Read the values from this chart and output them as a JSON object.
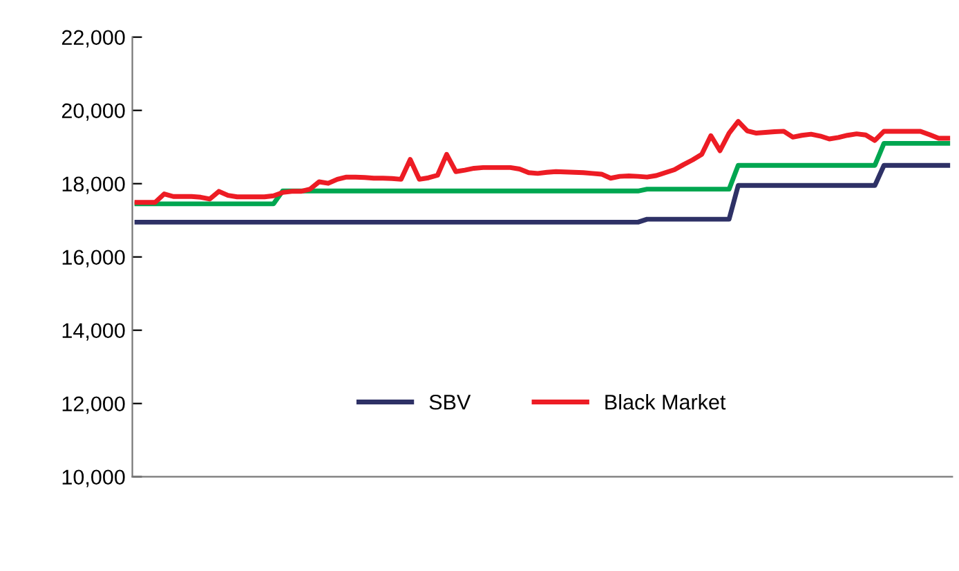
{
  "chart_data": {
    "type": "line",
    "categories": [
      null,
      null,
      null,
      null,
      null,
      null,
      null,
      null,
      null,
      null,
      null,
      null,
      null,
      null,
      null,
      null,
      null,
      null,
      null,
      null,
      null,
      null,
      null,
      null,
      null,
      null,
      null,
      null,
      null,
      null,
      null,
      null,
      null,
      null,
      null,
      null,
      null,
      null,
      null,
      null,
      null,
      null,
      null,
      null,
      null,
      null,
      null,
      null,
      null,
      null,
      null,
      null,
      null,
      null,
      null,
      null,
      null,
      null,
      null,
      null,
      null,
      null,
      null,
      null,
      null,
      null,
      null,
      null,
      null,
      null,
      null,
      null,
      null,
      null,
      null,
      null,
      null,
      null,
      null,
      null,
      null,
      null,
      null,
      null,
      null,
      null,
      null,
      null,
      null,
      null
    ],
    "series": [
      {
        "name": "SBV",
        "color": "#2e3166",
        "values": [
          16950,
          16950,
          16950,
          16950,
          16950,
          16950,
          16950,
          16950,
          16950,
          16950,
          16950,
          16950,
          16950,
          16950,
          16950,
          16950,
          16950,
          16950,
          16950,
          16950,
          16950,
          16950,
          16950,
          16950,
          16950,
          16950,
          16950,
          16950,
          16950,
          16950,
          16950,
          16950,
          16950,
          16950,
          16950,
          16950,
          16950,
          16950,
          16950,
          16950,
          16950,
          16950,
          16950,
          16950,
          16950,
          16950,
          16950,
          16950,
          16950,
          16950,
          16950,
          16950,
          16950,
          16950,
          16950,
          16950,
          17030,
          17030,
          17030,
          17030,
          17030,
          17030,
          17030,
          17030,
          17030,
          17030,
          17950,
          17950,
          17950,
          17950,
          17950,
          17950,
          17950,
          17950,
          17950,
          17950,
          17950,
          17950,
          17950,
          17950,
          17950,
          17950,
          18500,
          18500,
          18500,
          18500,
          18500,
          18500,
          18500,
          18500
        ]
      },
      {
        "color": "#00a650",
        "values": [
          17450,
          17450,
          17450,
          17450,
          17450,
          17450,
          17450,
          17450,
          17450,
          17450,
          17450,
          17450,
          17450,
          17450,
          17450,
          17450,
          17800,
          17800,
          17800,
          17800,
          17800,
          17800,
          17800,
          17800,
          17800,
          17800,
          17800,
          17800,
          17800,
          17800,
          17800,
          17800,
          17800,
          17800,
          17800,
          17800,
          17800,
          17800,
          17800,
          17800,
          17800,
          17800,
          17800,
          17800,
          17800,
          17800,
          17800,
          17800,
          17800,
          17800,
          17800,
          17800,
          17800,
          17800,
          17800,
          17800,
          17850,
          17850,
          17850,
          17850,
          17850,
          17850,
          17850,
          17850,
          17850,
          17850,
          18500,
          18500,
          18500,
          18500,
          18500,
          18500,
          18500,
          18500,
          18500,
          18500,
          18500,
          18500,
          18500,
          18500,
          18500,
          18500,
          19100,
          19100,
          19100,
          19100,
          19100,
          19100,
          19100,
          19100
        ]
      },
      {
        "name": "Black Market",
        "color": "#ed1c24",
        "values": [
          17490,
          17490,
          17490,
          17720,
          17650,
          17650,
          17650,
          17630,
          17580,
          17790,
          17680,
          17640,
          17640,
          17640,
          17640,
          17670,
          17760,
          17790,
          17790,
          17850,
          18050,
          18010,
          18120,
          18180,
          18180,
          18170,
          18150,
          18150,
          18140,
          18120,
          18660,
          18120,
          18160,
          18230,
          18800,
          18330,
          18370,
          18420,
          18440,
          18440,
          18440,
          18440,
          18400,
          18300,
          18280,
          18310,
          18330,
          18320,
          18310,
          18300,
          18280,
          18260,
          18150,
          18200,
          18210,
          18200,
          18180,
          18220,
          18300,
          18380,
          18520,
          18650,
          18800,
          19310,
          18900,
          19380,
          19700,
          19440,
          19380,
          19400,
          19420,
          19430,
          19270,
          19320,
          19350,
          19300,
          19220,
          19260,
          19320,
          19360,
          19330,
          19180,
          19430,
          19430,
          19430,
          19430,
          19430,
          19340,
          19240,
          19240
        ]
      }
    ],
    "ylim": [
      10000,
      22000
    ],
    "yticks": [
      {
        "value": 10000,
        "label": "10,000"
      },
      {
        "value": 12000,
        "label": "12,000"
      },
      {
        "value": 14000,
        "label": "14,000"
      },
      {
        "value": 16000,
        "label": "16,000"
      },
      {
        "value": 18000,
        "label": "18,000"
      },
      {
        "value": 20000,
        "label": "20,000"
      },
      {
        "value": 22000,
        "label": "22,000"
      }
    ],
    "tick_labels": "y",
    "legend": "bottom"
  }
}
